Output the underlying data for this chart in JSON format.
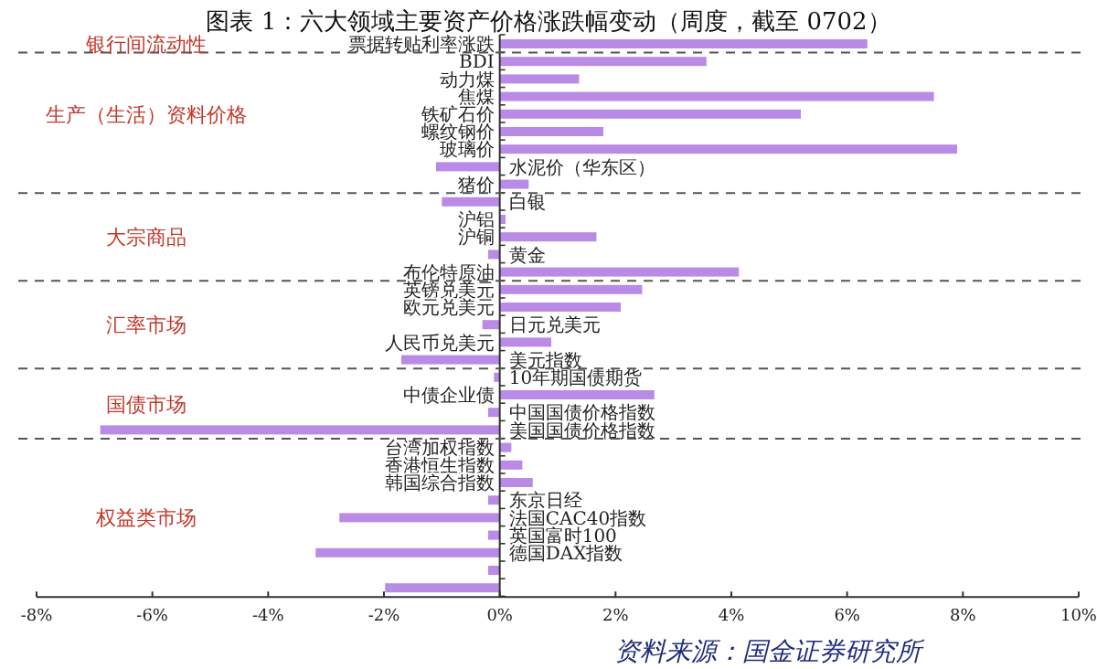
{
  "chart_data": {
    "type": "bar",
    "orientation": "horizontal",
    "title": "图表 1：六大领域主要资产价格涨跌幅变动（周度，截至 0702）",
    "categories": [
      "票据转贴利率涨跌",
      "BDI",
      "动力煤",
      "焦煤",
      "铁矿石价",
      "螺纹钢价",
      "玻璃价",
      "水泥价（华东区）",
      "猪价",
      "白银",
      "沪铝",
      "沪铜",
      "黄金",
      "布伦特原油",
      "英镑兑美元",
      "欧元兑美元",
      "日元兑美元",
      "人民币兑美元",
      "美元指数",
      "10年期国债期货",
      "中债企业债",
      "中国国债价格指数",
      "美国国债价格指数",
      "台湾加权指数",
      "香港恒生指数",
      "韩国综合指数",
      "东京日经",
      "法国CAC40指数",
      "英国富时100",
      "德国DAX指数",
      null,
      null
    ],
    "values": [
      6.35,
      3.57,
      1.37,
      7.5,
      5.2,
      1.79,
      7.9,
      -1.1,
      0.5,
      -1.0,
      0.1,
      1.67,
      -0.2,
      4.13,
      2.46,
      2.09,
      -0.3,
      0.89,
      -1.7,
      -0.1,
      2.67,
      -0.2,
      -6.9,
      0.2,
      0.39,
      0.57,
      -0.2,
      -2.77,
      -0.2,
      -3.18,
      -0.2,
      -1.98
    ],
    "color": "#b98ae6",
    "xlim": [
      -8,
      10
    ],
    "xticks": [
      {
        "value": -8,
        "label": "-8%"
      },
      {
        "value": -6,
        "label": "-6%"
      },
      {
        "value": -4,
        "label": "-4%"
      },
      {
        "value": -2,
        "label": "-2%"
      },
      {
        "value": 0,
        "label": "0%"
      },
      {
        "value": 2,
        "label": "2%"
      },
      {
        "value": 4,
        "label": "4%"
      },
      {
        "value": 6,
        "label": "6%"
      },
      {
        "value": 8,
        "label": "8%"
      },
      {
        "value": 10,
        "label": "10%"
      }
    ],
    "annotations": [
      "银行间流动性",
      "生产（生活）资料价格",
      "大宗商品",
      "汇率市场",
      "国债市场",
      "权益类市场",
      "资料来源：国金证券研究所"
    ]
  }
}
